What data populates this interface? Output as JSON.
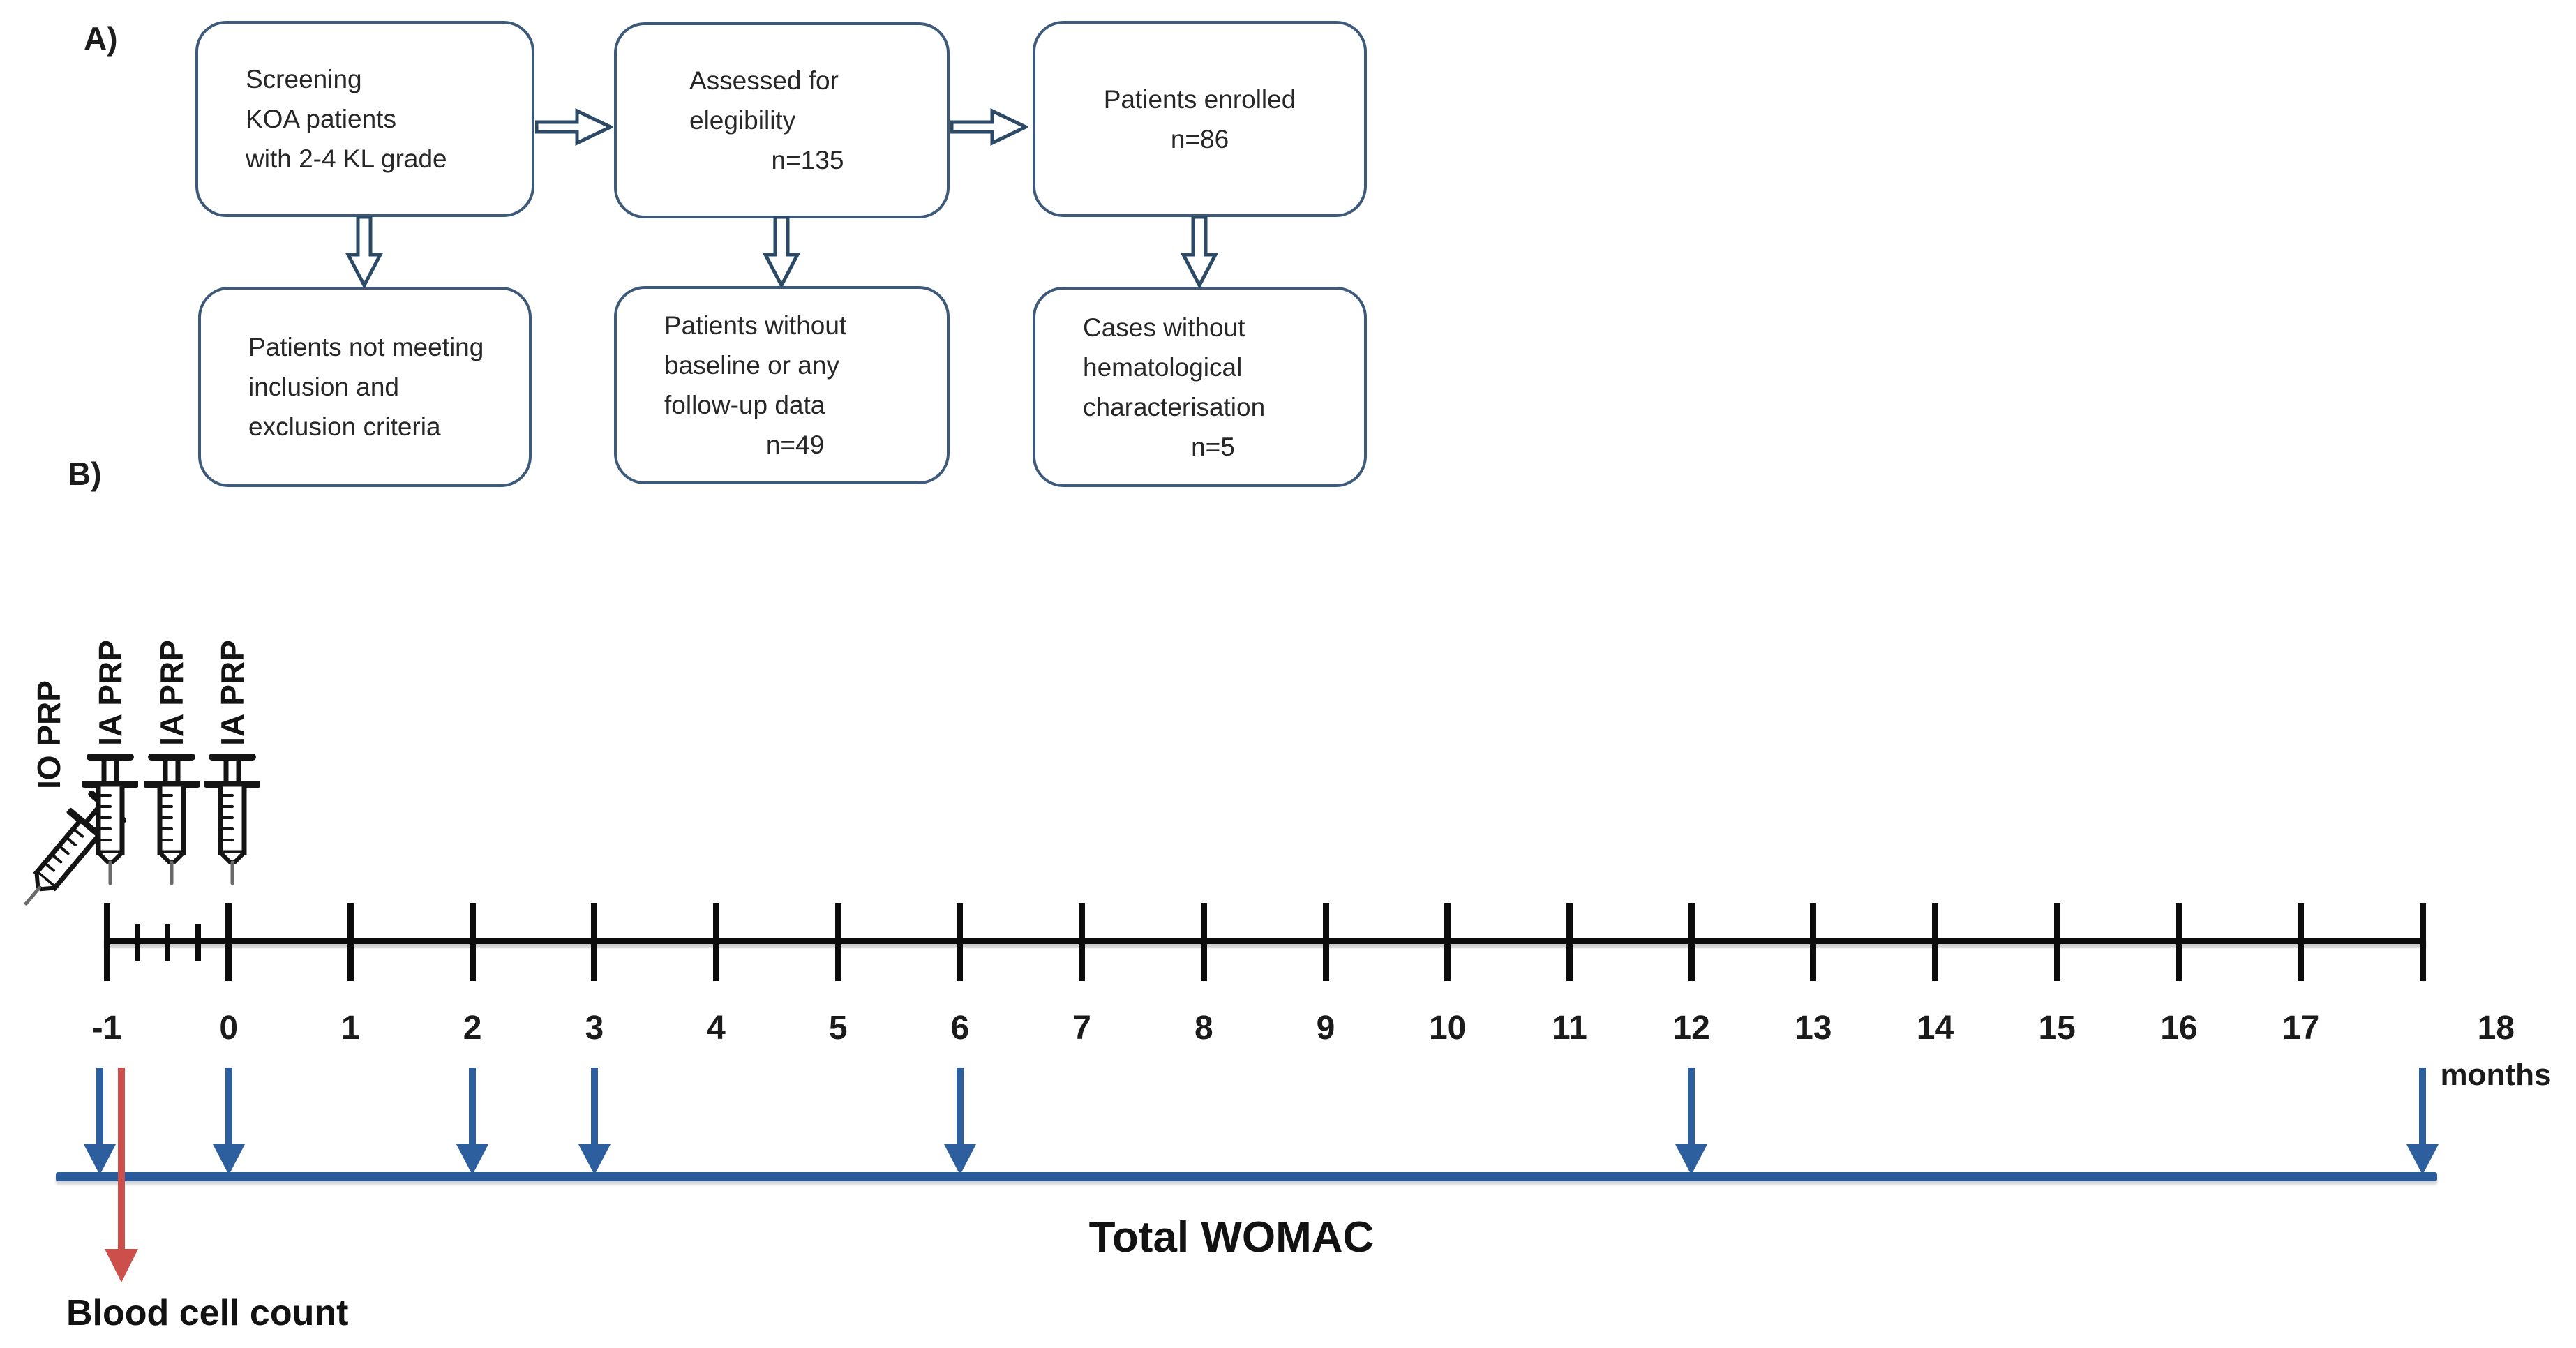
{
  "panel_a": {
    "label": "A)",
    "boxes": [
      {
        "name": "screening",
        "lines": [
          "Screening",
          "KOA patients",
          "with 2-4 KL grade"
        ]
      },
      {
        "name": "assessed-eligibility",
        "lines": [
          "Assessed for",
          "elegibility",
          "n=135"
        ]
      },
      {
        "name": "enrolled",
        "lines": [
          "Patients enrolled",
          "n=86"
        ]
      },
      {
        "name": "not-meeting-criteria",
        "lines": [
          "Patients not meeting",
          "inclusion and",
          "exclusion criteria"
        ]
      },
      {
        "name": "no-followup-data",
        "lines": [
          "Patients without",
          "baseline or any",
          "follow-up data",
          "n=49"
        ]
      },
      {
        "name": "no-hematology",
        "lines": [
          "Cases without",
          "hematological",
          "characterisation",
          "n=5"
        ]
      }
    ]
  },
  "panel_b": {
    "label": "B)",
    "injections": [
      {
        "label": "IO PRP",
        "month": -0.98,
        "style": "tilted"
      },
      {
        "label": "IA PRP",
        "month": -0.97,
        "style": "vertical"
      },
      {
        "label": "IA PRP",
        "month": -0.47,
        "style": "vertical"
      },
      {
        "label": "IA PRP",
        "month": 0.03,
        "style": "vertical"
      }
    ],
    "timeline": {
      "months": [
        -1,
        0,
        1,
        2,
        3,
        4,
        5,
        6,
        7,
        8,
        9,
        10,
        11,
        12,
        13,
        14,
        15,
        16,
        17,
        18
      ],
      "tick_labels": [
        "-1",
        "0",
        "1",
        "2",
        "3",
        "4",
        "5",
        "6",
        "7",
        "8",
        "9",
        "10",
        "11",
        "12",
        "13",
        "14",
        "15",
        "16",
        "17",
        "18"
      ],
      "sub_tick_months": [
        -0.75,
        -0.5,
        -0.25
      ],
      "unit_label": "months"
    },
    "womac": {
      "label": "Total WOMAC",
      "arrow_months": [
        -1,
        0,
        2,
        3,
        6,
        12,
        18
      ]
    },
    "blood": {
      "label": "Blood cell count",
      "arrow_month": -0.88
    }
  },
  "colors": {
    "box_border": "#3d5a7a",
    "flow_arrow": "#2c4965",
    "womac_blue": "#2d5f9f",
    "bar_blue": "#2a5b9b",
    "blood_red": "#cc4f4c",
    "axis_black": "#0c0c0c"
  }
}
